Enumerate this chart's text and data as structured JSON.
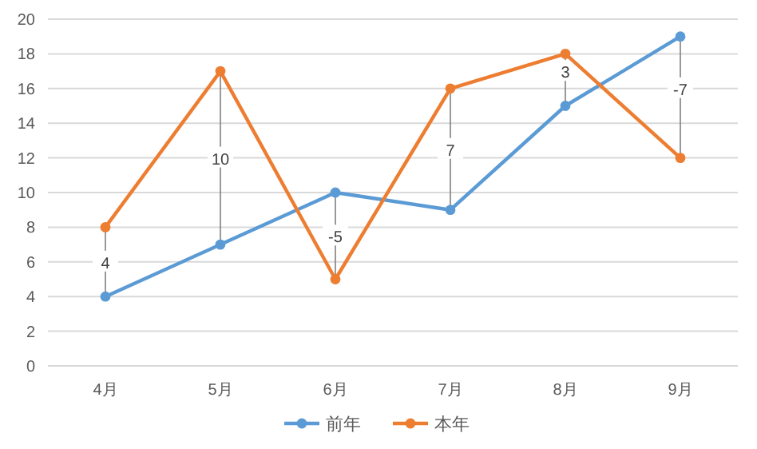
{
  "chart_data": {
    "type": "line",
    "categories": [
      "4月",
      "5月",
      "6月",
      "7月",
      "8月",
      "9月"
    ],
    "series": [
      {
        "name": "前年",
        "color": "#5b9bd5",
        "values": [
          4,
          7,
          10,
          9,
          15,
          19
        ]
      },
      {
        "name": "本年",
        "color": "#ed7d31",
        "values": [
          8,
          17,
          5,
          16,
          18,
          12
        ]
      }
    ],
    "ylim": [
      0,
      20
    ],
    "yticks": [
      0,
      2,
      4,
      6,
      8,
      10,
      12,
      14,
      16,
      18,
      20
    ],
    "grid": "y",
    "marker": "circle",
    "line_style": "solid",
    "legend": "bottom",
    "annotations": [
      {
        "text": "4",
        "x": "4月",
        "y": 6
      },
      {
        "text": "10",
        "x": "5月",
        "y": 12
      },
      {
        "text": "-5",
        "x": "6月",
        "y": 7.5
      },
      {
        "text": "7",
        "x": "7月",
        "y": 12.5
      },
      {
        "text": "3",
        "x": "8月",
        "y": 17
      },
      {
        "text": "-7",
        "x": "9月",
        "y": 16
      }
    ]
  }
}
